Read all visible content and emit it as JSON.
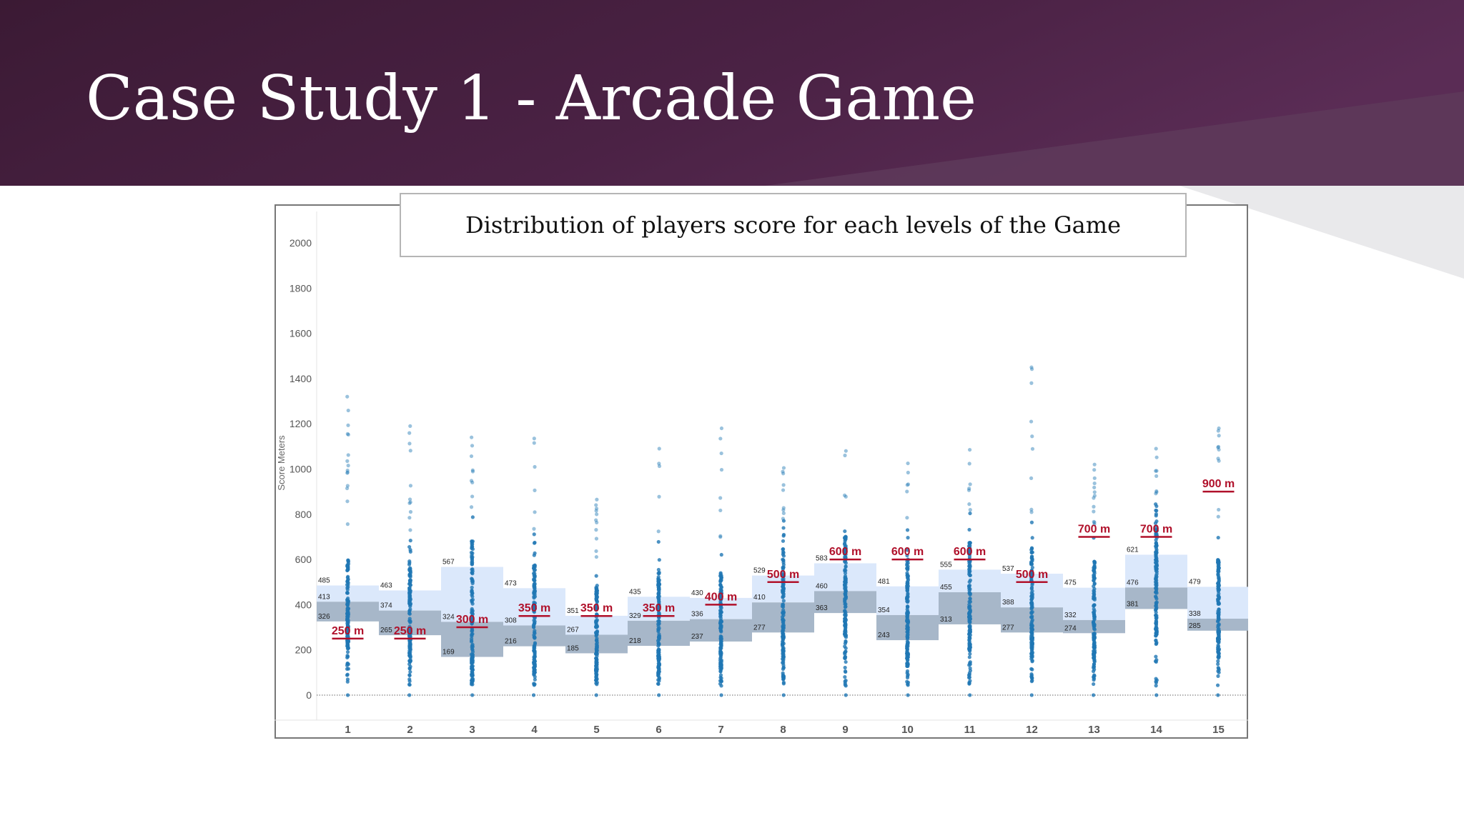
{
  "slide": {
    "title": "Case Study 1 - Arcade Game",
    "colors": {
      "header_dark": "#3a1a33",
      "header_mid": "#4e2448",
      "accent_light": "#5a3355",
      "grey_band": "#e8e8ea"
    }
  },
  "chart_data": {
    "type": "scatter",
    "title": "Distribution of players score for each levels of the Game",
    "ylabel": "Score Meters",
    "xlabel": "",
    "ylim": [
      0,
      2000
    ],
    "yticks": [
      0,
      200,
      400,
      600,
      800,
      1000,
      1200,
      1400,
      1600,
      1800,
      2000
    ],
    "grid": false,
    "categories": [
      "1",
      "2",
      "3",
      "4",
      "5",
      "6",
      "7",
      "8",
      "9",
      "10",
      "11",
      "12",
      "13",
      "14",
      "15"
    ],
    "colors": {
      "points": "#1f77b4",
      "box_upper": "#dbe8fb",
      "box_lower": "#a7b7c9",
      "target": "#b0102a",
      "axis_text": "#555555"
    },
    "levels": [
      {
        "level": "1",
        "q1": 326,
        "median": 413,
        "q3": 485,
        "target": 250,
        "target_label": "250 m",
        "max": 1320,
        "min": 0
      },
      {
        "level": "2",
        "q1": 265,
        "median": 374,
        "q3": 463,
        "target": 250,
        "target_label": "250 m",
        "max": 1190,
        "min": 30
      },
      {
        "level": "3",
        "q1": 169,
        "median": 324,
        "q3": 567,
        "target": 300,
        "target_label": "300 m",
        "max": 1140,
        "min": 40
      },
      {
        "level": "4",
        "q1": 216,
        "median": 308,
        "q3": 473,
        "target": 350,
        "target_label": "350 m",
        "max": 1135,
        "min": 0
      },
      {
        "level": "5",
        "q1": 185,
        "median": 267,
        "q3": 351,
        "target": 350,
        "target_label": "350 m",
        "max": 865,
        "min": 0
      },
      {
        "level": "6",
        "q1": 218,
        "median": 329,
        "q3": 435,
        "target": 350,
        "target_label": "350 m",
        "max": 1090,
        "min": 0
      },
      {
        "level": "7",
        "q1": 237,
        "median": 336,
        "q3": 430,
        "target": 400,
        "target_label": "400 m",
        "max": 1180,
        "min": 0
      },
      {
        "level": "8",
        "q1": 277,
        "median": 410,
        "q3": 529,
        "target": 500,
        "target_label": "500 m",
        "max": 1005,
        "min": 0
      },
      {
        "level": "9",
        "q1": 363,
        "median": 460,
        "q3": 583,
        "target": 600,
        "target_label": "600 m",
        "max": 1080,
        "min": 0
      },
      {
        "level": "10",
        "q1": 243,
        "median": 354,
        "q3": 481,
        "target": 600,
        "target_label": "600 m",
        "max": 1025,
        "min": 0
      },
      {
        "level": "11",
        "q1": 313,
        "median": 455,
        "q3": 555,
        "target": 600,
        "target_label": "600 m",
        "max": 1085,
        "min": 0
      },
      {
        "level": "12",
        "q1": 277,
        "median": 388,
        "q3": 537,
        "target": 500,
        "target_label": "500 m",
        "max": 1450,
        "min": 0
      },
      {
        "level": "13",
        "q1": 274,
        "median": 332,
        "q3": 475,
        "target": 700,
        "target_label": "700 m",
        "max": 1020,
        "min": 0
      },
      {
        "level": "14",
        "q1": 381,
        "median": 476,
        "q3": 621,
        "target": 700,
        "target_label": "700 m",
        "max": 1090,
        "min": 0
      },
      {
        "level": "15",
        "q1": 285,
        "median": 338,
        "q3": 479,
        "target": 900,
        "target_label": "900 m",
        "max": 1180,
        "min": 0
      }
    ]
  }
}
